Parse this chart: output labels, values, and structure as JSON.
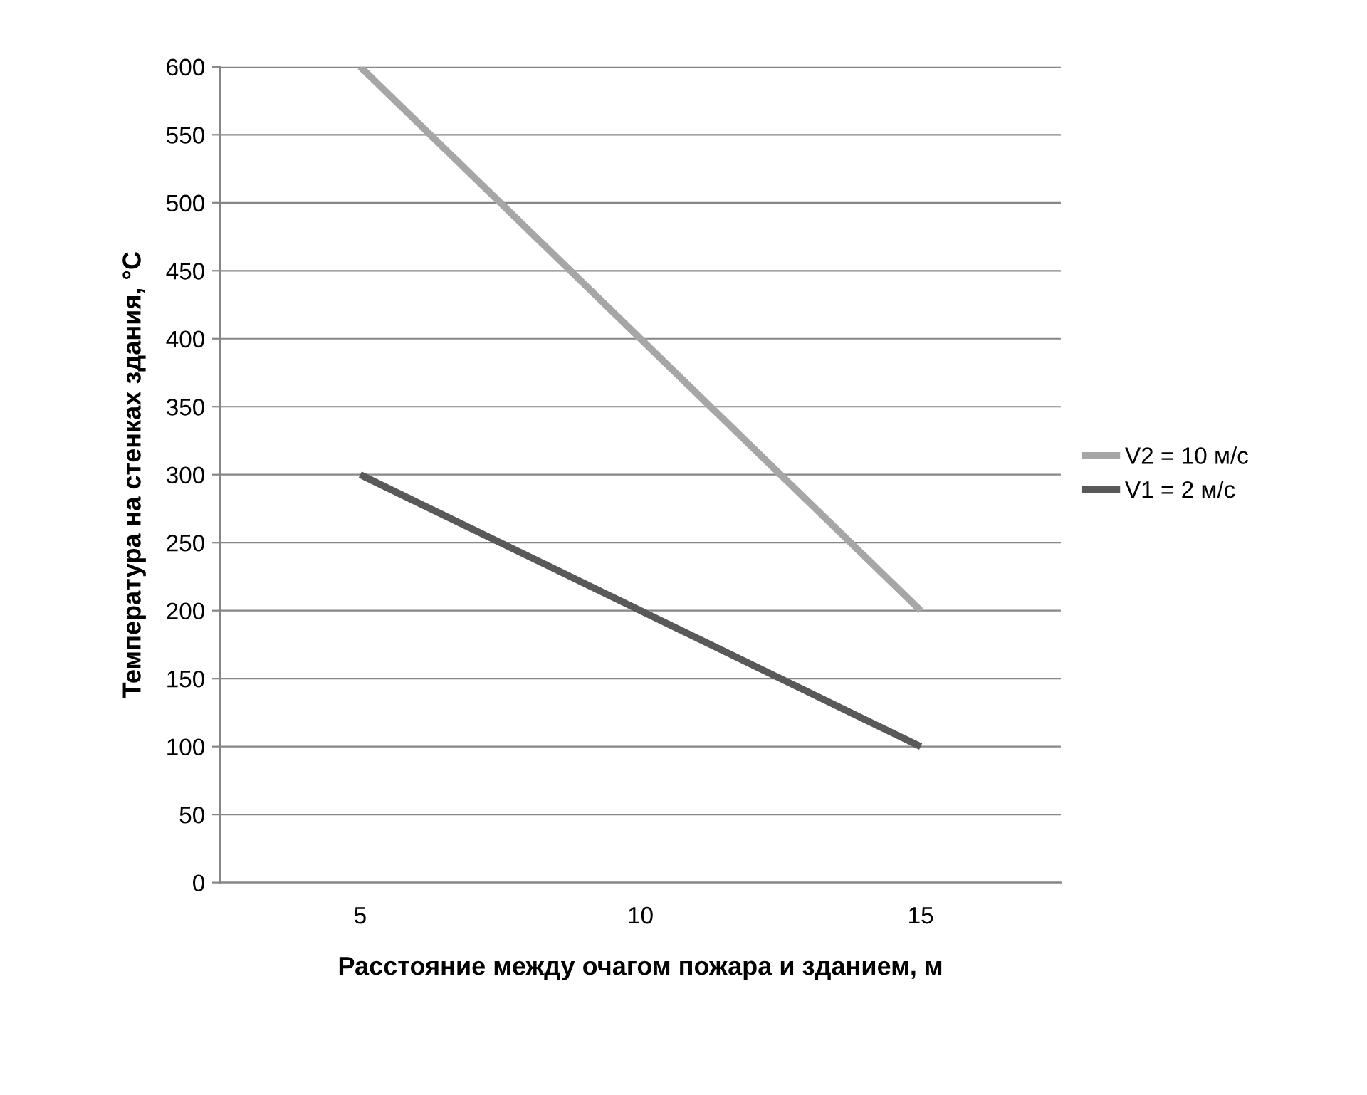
{
  "chart_data": {
    "type": "line",
    "xlabel": "Расстояние между очагом пожара и зданием, м",
    "ylabel": "Температура на стенках здания, °С",
    "categories": [
      "5",
      "10",
      "15"
    ],
    "series": [
      {
        "name": "V2 = 10 м/с",
        "color": "#a6a6a6",
        "values": [
          600,
          400,
          200
        ]
      },
      {
        "name": "V1 = 2 м/с",
        "color": "#595959",
        "values": [
          300,
          200,
          100
        ]
      }
    ],
    "ylim": [
      0,
      600
    ],
    "yticks": [
      0,
      50,
      100,
      150,
      200,
      250,
      300,
      350,
      400,
      450,
      500,
      550,
      600
    ],
    "grid": "y",
    "legend": "right",
    "marker": "none",
    "line_style": "solid"
  }
}
